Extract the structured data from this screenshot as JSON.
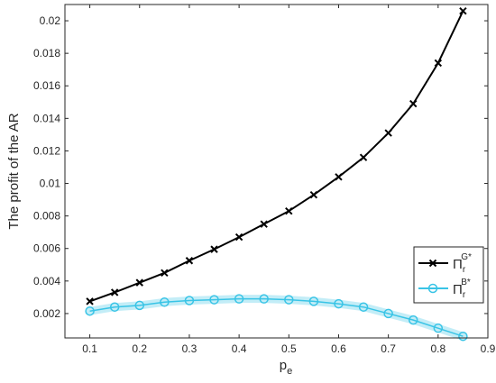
{
  "chart_data": {
    "type": "line",
    "xlabel": "p",
    "xlabel_sub": "e",
    "ylabel": "The profit of the AR",
    "xlim": [
      0.05,
      0.9
    ],
    "ylim": [
      0.0005,
      0.021
    ],
    "x_ticks": [
      0.1,
      0.2,
      0.3,
      0.4,
      0.5,
      0.6,
      0.7,
      0.8,
      0.9
    ],
    "y_ticks": [
      0.002,
      0.004,
      0.006,
      0.008,
      0.01,
      0.012,
      0.014,
      0.016,
      0.018,
      0.02
    ],
    "x_tick_labels": [
      "0.1",
      "0.2",
      "0.3",
      "0.4",
      "0.5",
      "0.6",
      "0.7",
      "0.8",
      "0.9"
    ],
    "y_tick_labels": [
      "0.002",
      "0.004",
      "0.006",
      "0.008",
      "0.01",
      "0.012",
      "0.014",
      "0.016",
      "0.018",
      "0.02"
    ],
    "legend_position": "bottom-right",
    "x": [
      0.1,
      0.15,
      0.2,
      0.25,
      0.3,
      0.35,
      0.4,
      0.45,
      0.5,
      0.55,
      0.6,
      0.65,
      0.7,
      0.75,
      0.8,
      0.85
    ],
    "series": [
      {
        "name": "Π",
        "name_sub": "r",
        "name_sup": "G*",
        "color": "#000000",
        "marker": "x",
        "values": [
          0.00275,
          0.0033,
          0.0039,
          0.0045,
          0.00525,
          0.00595,
          0.0067,
          0.0075,
          0.0083,
          0.0093,
          0.0104,
          0.0116,
          0.0131,
          0.0149,
          0.0174,
          0.0206
        ]
      },
      {
        "name": "Π",
        "name_sub": "r",
        "name_sup": "B*",
        "color": "#39c4e6",
        "marker": "o",
        "values": [
          0.00215,
          0.0024,
          0.0025,
          0.0027,
          0.0028,
          0.00285,
          0.0029,
          0.0029,
          0.00285,
          0.00275,
          0.0026,
          0.0024,
          0.002,
          0.0016,
          0.0011,
          0.0006
        ]
      }
    ]
  }
}
